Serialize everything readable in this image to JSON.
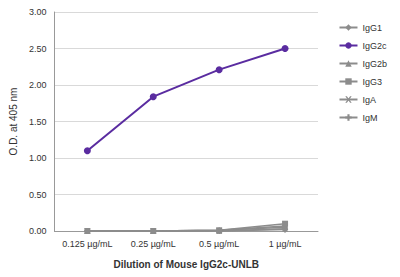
{
  "chart_data": {
    "type": "line",
    "x_label": "Dilution of Mouse IgG2c-UNLB",
    "y_label": "O.D. at 405 nm",
    "categories": [
      "0.125 µg/mL",
      "0.25 µg/mL",
      "0.5 µg/mL",
      "1 µg/mL"
    ],
    "series": [
      {
        "name": "IgG1",
        "color": "#8c8c8c",
        "marker": "diamond",
        "values": [
          0.0,
          0.0,
          0.01,
          0.05
        ]
      },
      {
        "name": "IgG2c",
        "color": "#5a2ca0",
        "marker": "circle",
        "values": [
          1.1,
          1.84,
          2.21,
          2.5
        ]
      },
      {
        "name": "IgG2b",
        "color": "#8c8c8c",
        "marker": "triangle",
        "values": [
          0.0,
          0.0,
          0.01,
          0.07
        ]
      },
      {
        "name": "IgG3",
        "color": "#8c8c8c",
        "marker": "square",
        "values": [
          0.0,
          0.0,
          0.01,
          0.1
        ]
      },
      {
        "name": "IgA",
        "color": "#8c8c8c",
        "marker": "x",
        "values": [
          0.0,
          0.0,
          0.0,
          0.03
        ]
      },
      {
        "name": "IgM",
        "color": "#8c8c8c",
        "marker": "plus",
        "values": [
          0.0,
          0.0,
          0.0,
          0.02
        ]
      }
    ],
    "ylim": [
      0,
      3
    ],
    "yticks": [
      {
        "value": 0,
        "label": "0.00"
      },
      {
        "value": 0.5,
        "label": "0.50"
      },
      {
        "value": 1,
        "label": "1.00"
      },
      {
        "value": 1.5,
        "label": "1.50"
      },
      {
        "value": 2,
        "label": "2.00"
      },
      {
        "value": 2.5,
        "label": "2.50"
      },
      {
        "value": 3,
        "label": "3.00"
      }
    ],
    "grid": true,
    "legend": "right"
  }
}
